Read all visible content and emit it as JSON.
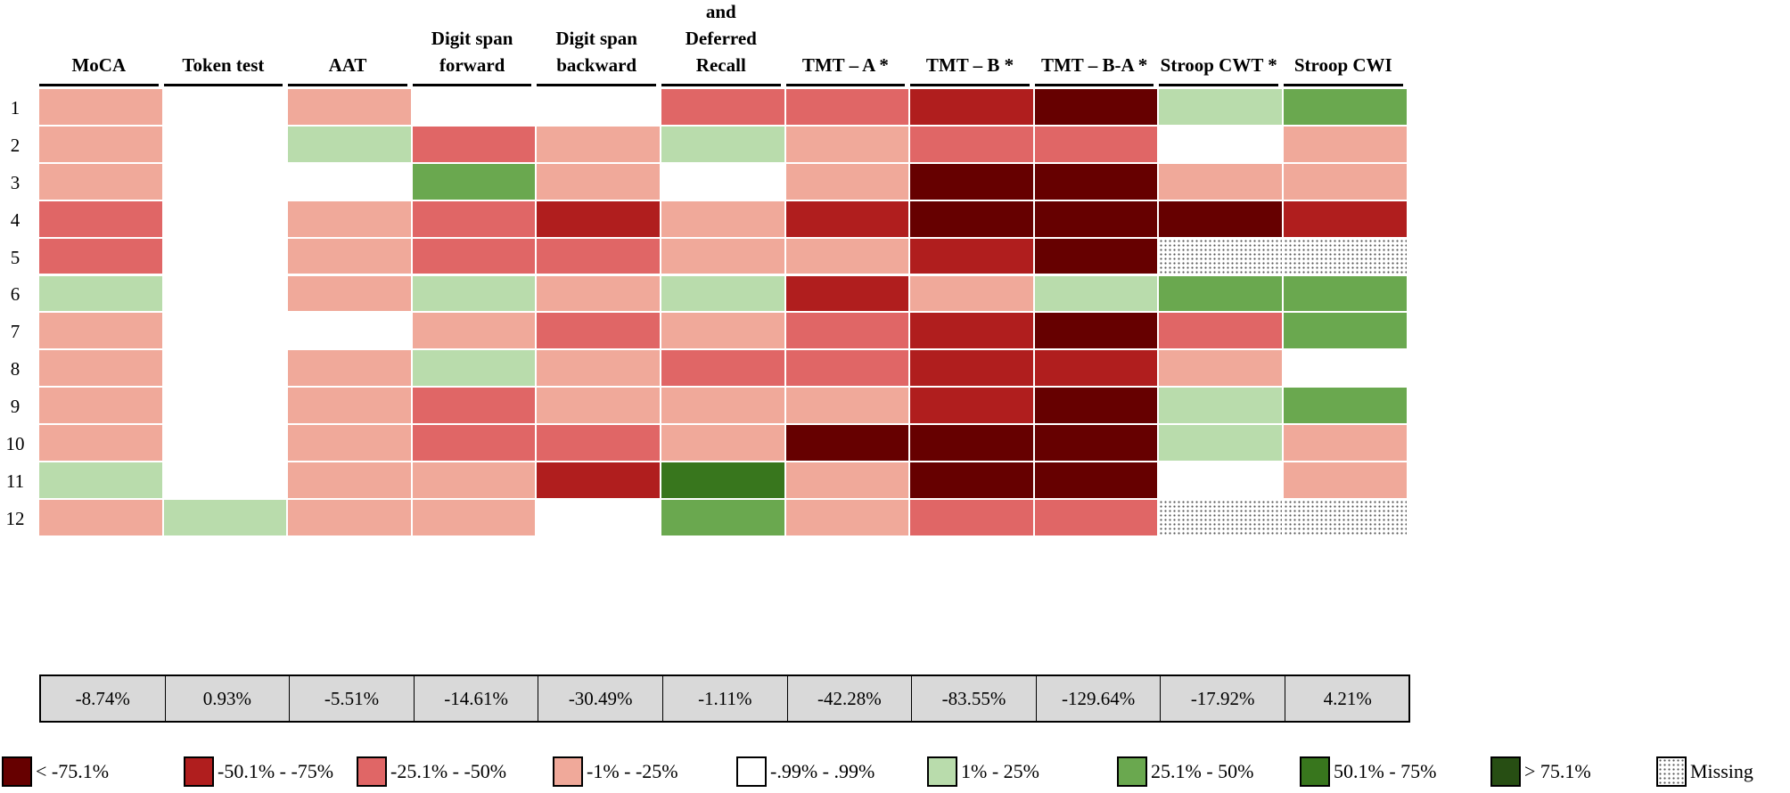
{
  "chart_data": {
    "type": "heatmap",
    "columns": [
      "MoCA",
      "Token test",
      "AAT",
      "Digit span\nforward",
      "Digit span\nbackward",
      "Immediate and\nDeferred\nRecall",
      "TMT – A *",
      "TMT – B *",
      "TMT – B-A *",
      "Stroop CWT *",
      "Stroop CWI"
    ],
    "rows": [
      "1",
      "2",
      "3",
      "4",
      "5",
      "6",
      "7",
      "8",
      "9",
      "10",
      "11",
      "12"
    ],
    "cells": [
      [
        "-1% - -25%",
        "-.99% - .99%",
        "-1% - -25%",
        "-.99% - .99%",
        "-.99% - .99%",
        "-25.1% - -50%",
        "-25.1% - -50%",
        "-50.1% - -75%",
        "< -75.1%",
        "1% - 25%",
        "25.1% - 50%"
      ],
      [
        "-1% - -25%",
        "-.99% - .99%",
        "1% - 25%",
        "-25.1% - -50%",
        "-1% - -25%",
        "1% - 25%",
        "-1% - -25%",
        "-25.1% - -50%",
        "-25.1% - -50%",
        "-.99% - .99%",
        "-1% - -25%"
      ],
      [
        "-1% - -25%",
        "-.99% - .99%",
        "-.99% - .99%",
        "25.1% - 50%",
        "-1% - -25%",
        "-.99% - .99%",
        "-1% - -25%",
        "< -75.1%",
        "< -75.1%",
        "-1% - -25%",
        "-1% - -25%"
      ],
      [
        "-25.1% - -50%",
        "-.99% - .99%",
        "-1% - -25%",
        "-25.1% - -50%",
        "-50.1% - -75%",
        "-1% - -25%",
        "-50.1% - -75%",
        "< -75.1%",
        "< -75.1%",
        "< -75.1%",
        "-50.1% - -75%"
      ],
      [
        "-25.1% - -50%",
        "-.99% - .99%",
        "-1% - -25%",
        "-25.1% - -50%",
        "-25.1% - -50%",
        "-1% - -25%",
        "-1% - -25%",
        "-50.1% - -75%",
        "< -75.1%",
        "Missing",
        "Missing"
      ],
      [
        "1% - 25%",
        "-.99% - .99%",
        "-1% - -25%",
        "1% - 25%",
        "-1% - -25%",
        "1% - 25%",
        "-50.1% - -75%",
        "-1% - -25%",
        "1% - 25%",
        "25.1% - 50%",
        "25.1% - 50%"
      ],
      [
        "-1% - -25%",
        "-.99% - .99%",
        "-.99% - .99%",
        "-1% - -25%",
        "-25.1% - -50%",
        "-1% - -25%",
        "-25.1% - -50%",
        "-50.1% - -75%",
        "< -75.1%",
        "-25.1% - -50%",
        "25.1% - 50%"
      ],
      [
        "-1% - -25%",
        "-.99% - .99%",
        "-1% - -25%",
        "1% - 25%",
        "-1% - -25%",
        "-25.1% - -50%",
        "-25.1% - -50%",
        "-50.1% - -75%",
        "-50.1% - -75%",
        "-1% - -25%",
        "-.99% - .99%"
      ],
      [
        "-1% - -25%",
        "-.99% - .99%",
        "-1% - -25%",
        "-25.1% - -50%",
        "-1% - -25%",
        "-1% - -25%",
        "-1% - -25%",
        "-50.1% - -75%",
        "< -75.1%",
        "1% - 25%",
        "25.1% - 50%"
      ],
      [
        "-1% - -25%",
        "-.99% - .99%",
        "-1% - -25%",
        "-25.1% - -50%",
        "-25.1% - -50%",
        "-1% - -25%",
        "< -75.1%",
        "< -75.1%",
        "< -75.1%",
        "1% - 25%",
        "-1% - -25%"
      ],
      [
        "1% - 25%",
        "-.99% - .99%",
        "-1% - -25%",
        "-1% - -25%",
        "-50.1% - -75%",
        "50.1% - 75%",
        "-1% - -25%",
        "< -75.1%",
        "< -75.1%",
        "-.99% - .99%",
        "-1% - -25%"
      ],
      [
        "-1% - -25%",
        "1% - 25%",
        "-1% - -25%",
        "-1% - -25%",
        "-.99% - .99%",
        "25.1% - 50%",
        "-1% - -25%",
        "-25.1% - -50%",
        "-25.1% - -50%",
        "Missing",
        "Missing"
      ]
    ],
    "summary": [
      "-8.74%",
      "0.93%",
      "-5.51%",
      "-14.61%",
      "-30.49%",
      "-1.11%",
      "-42.28%",
      "-83.55%",
      "-129.64%",
      "-17.92%",
      "4.21%"
    ],
    "legend": [
      {
        "label": "< -75.1%",
        "color": "#660000"
      },
      {
        "label": "-50.1% - -75%",
        "color": "#b01e1e"
      },
      {
        "label": "-25.1% - -50%",
        "color": "#e06666"
      },
      {
        "label": "-1% - -25%",
        "color": "#f0a99a"
      },
      {
        "label": "-.99% - .99%",
        "color": "#ffffff"
      },
      {
        "label": "1% - 25%",
        "color": "#b9dcac"
      },
      {
        "label": "25.1% - 50%",
        "color": "#6aa84f"
      },
      {
        "label": "50.1% - 75%",
        "color": "#38761d"
      },
      {
        "label": "> 75.1%",
        "color": "#274e13"
      },
      {
        "label": "Missing",
        "color": "pattern-dots"
      }
    ]
  }
}
